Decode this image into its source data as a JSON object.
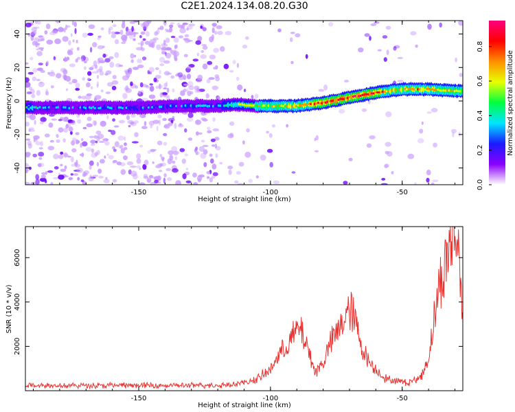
{
  "title": "C2E1.2024.134.08.20.G30",
  "chart_data": [
    {
      "type": "heatmap",
      "xlabel": "Height of straight line (km)",
      "ylabel": "Frequency (Hz)",
      "xlim": [
        -193,
        -27
      ],
      "ylim": [
        -50,
        48
      ],
      "xticks": [
        -150,
        -100,
        -50
      ],
      "yticks": [
        -40,
        -20,
        0,
        20,
        40
      ],
      "colorbar": {
        "label": "Normalized spectral amplitude",
        "range": [
          0,
          0.95
        ],
        "ticks": [
          "0.0",
          "0.2",
          "0.4",
          "0.6",
          "0.8"
        ],
        "colors": [
          "#ffffff",
          "#8a00ff",
          "#1a1aff",
          "#00e5ff",
          "#00ff40",
          "#e8ff00",
          "#ff9000",
          "#ff0000",
          "#ff0080"
        ]
      },
      "ridge": {
        "x": [
          -193,
          -185,
          -170,
          -150,
          -135,
          -120,
          -112,
          -105,
          -100,
          -90,
          -80,
          -70,
          -60,
          -55,
          -50,
          -40,
          -30,
          -27
        ],
        "frequency_hz": [
          -4,
          -4,
          -4,
          -4,
          -3,
          -3,
          -2,
          -3,
          -3,
          -3,
          -1,
          2,
          5,
          6,
          7,
          7,
          6,
          6
        ],
        "amplitude": [
          0.35,
          0.2,
          0.2,
          0.2,
          0.2,
          0.25,
          0.45,
          0.5,
          0.55,
          0.6,
          0.75,
          0.8,
          0.75,
          0.6,
          0.55,
          0.65,
          0.55,
          0.5
        ]
      }
    },
    {
      "type": "line",
      "xlabel": "Height of straight line (km)",
      "ylabel": "SNR (10 * v/v)",
      "xlim": [
        -193,
        -27
      ],
      "ylim": [
        0,
        7400
      ],
      "xticks": [
        -150,
        -100,
        -50
      ],
      "yticks": [
        2000,
        4000,
        6000
      ],
      "color": "#e8322f",
      "series": [
        {
          "x": [
            -193,
            -180,
            -160,
            -140,
            -120,
            -110,
            -105,
            -100,
            -97,
            -94,
            -91,
            -89,
            -87,
            -85,
            -83,
            -80,
            -77,
            -74,
            -71,
            -69,
            -67,
            -65,
            -63,
            -60,
            -56,
            -52,
            -48,
            -44,
            -42,
            -40,
            -38,
            -36,
            -34,
            -32,
            -30,
            -28,
            -27
          ],
          "values": [
            250,
            220,
            230,
            220,
            230,
            330,
            500,
            900,
            1500,
            1900,
            2400,
            2700,
            2200,
            1500,
            800,
            1200,
            2100,
            2600,
            3300,
            3400,
            2600,
            1800,
            1300,
            900,
            500,
            400,
            350,
            500,
            800,
            1400,
            3000,
            4500,
            5200,
            6200,
            6800,
            5500,
            3000
          ]
        }
      ]
    }
  ]
}
